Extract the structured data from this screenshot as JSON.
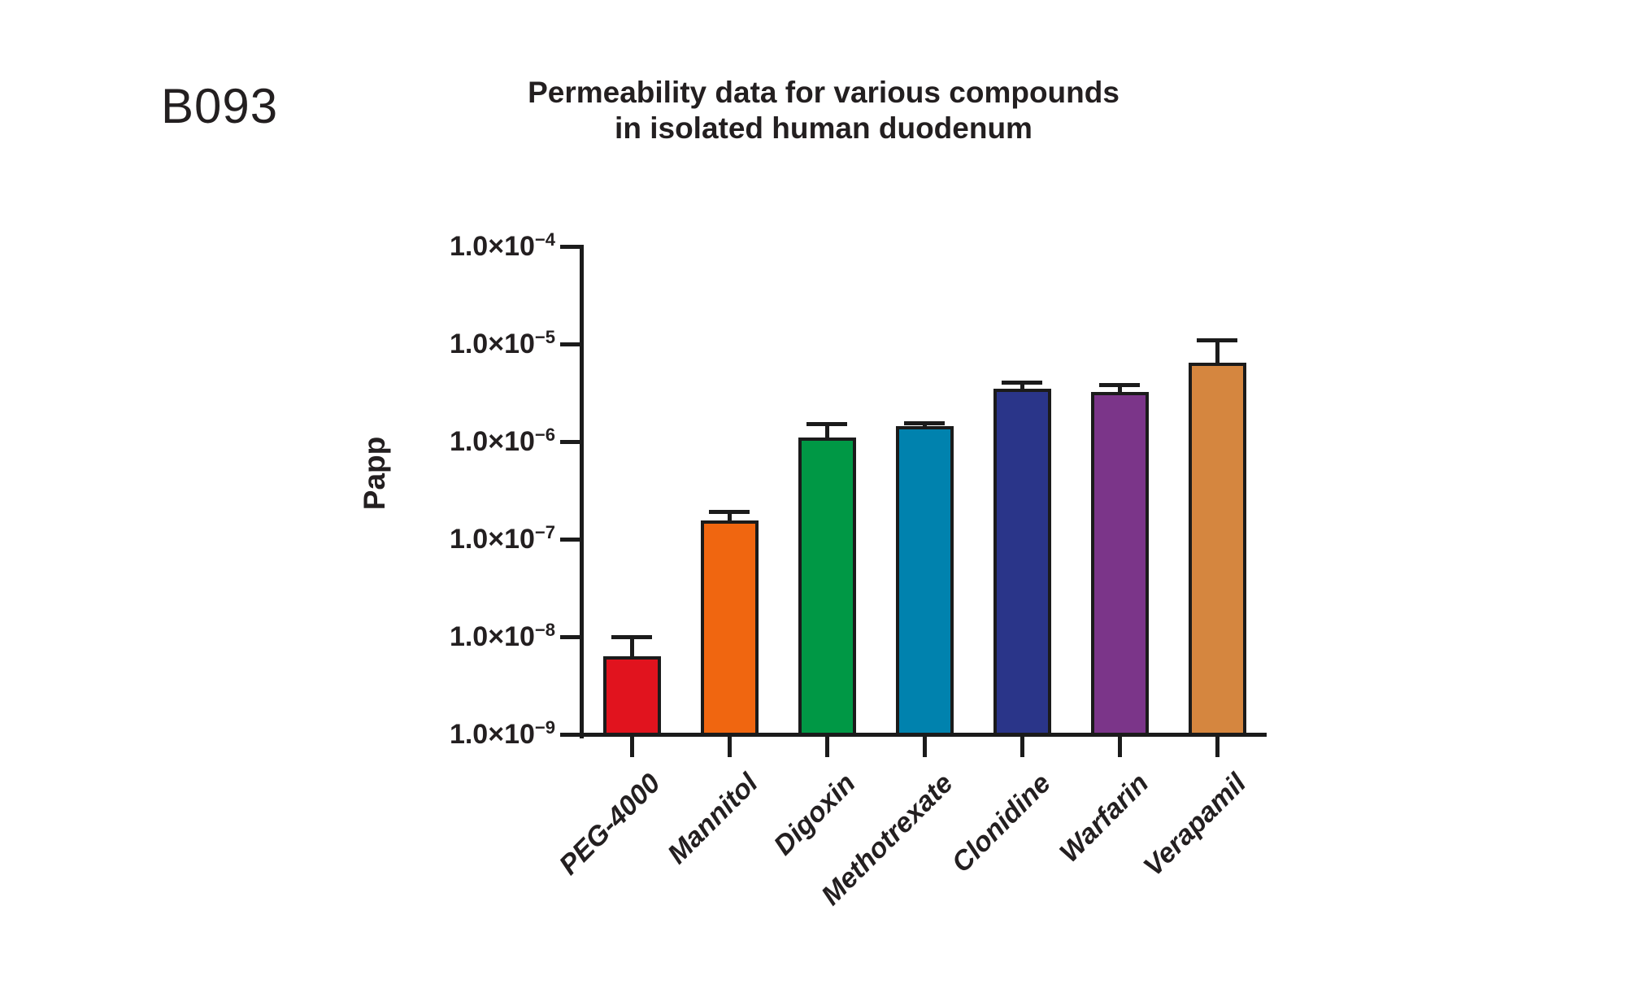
{
  "figure": {
    "label": "B093"
  },
  "chart_data": {
    "type": "bar",
    "title": "Permeability data for various compounds in isolated human duodenum",
    "title_line1": "Permeability data for various compounds",
    "title_line2": "in isolated human duodenum",
    "ylabel": "Papp",
    "xlabel": "",
    "yscale": "log",
    "ylim": [
      1e-09,
      0.0001
    ],
    "grid": false,
    "legend": false,
    "ytick_mantissa": "1.0×10",
    "ytick_exponents": [
      -4,
      -5,
      -6,
      -7,
      -8,
      -9
    ],
    "categories": [
      "PEG-4000",
      "Mannitol",
      "Digoxin",
      "Methotrexate",
      "Clonidine",
      "Warfarin",
      "Verapamil"
    ],
    "values": [
      6.3e-09,
      1.55e-07,
      1.1e-06,
      1.45e-06,
      3.5e-06,
      3.2e-06,
      6.4e-06
    ],
    "error_upper": [
      1e-08,
      1.9e-07,
      1.5e-06,
      1.55e-06,
      4e-06,
      3.8e-06,
      1.1e-05
    ],
    "bar_colors": [
      "#e1131e",
      "#f06610",
      "#009845",
      "#0082ae",
      "#2a3589",
      "#7b3589",
      "#d5863f"
    ],
    "axis_color": "#1b1b1b",
    "text_color": "#231f20"
  }
}
